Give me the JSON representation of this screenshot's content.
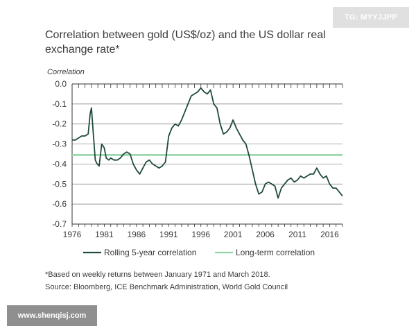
{
  "watermarks": {
    "top": "TG: MYYJJPP",
    "bottom": "www.shenqisj.com"
  },
  "chart_data": {
    "type": "line",
    "title": "Correlation between gold (US$/oz) and the US dollar real exchange rate*",
    "ylabel": "Correlation",
    "xlabel": "",
    "ylim": [
      -0.7,
      0.0
    ],
    "xlim": [
      1976,
      2018
    ],
    "y_ticks": [
      "0.0",
      "-0.1",
      "-0.2",
      "-0.3",
      "-0.4",
      "-0.5",
      "-0.6",
      "-0.7"
    ],
    "x_ticks": [
      "1976",
      "1981",
      "1986",
      "1991",
      "1996",
      "2001",
      "2006",
      "2011",
      "2016"
    ],
    "grid": "horizontal",
    "legend_position": "bottom",
    "series": [
      {
        "name": "Rolling 5-year correlation",
        "color": "#1f4a3a",
        "style": "line",
        "x": [
          1976.0,
          1976.5,
          1977.0,
          1977.5,
          1978.0,
          1978.5,
          1978.8,
          1979.0,
          1979.3,
          1979.6,
          1979.9,
          1980.2,
          1980.6,
          1981.0,
          1981.3,
          1981.7,
          1982.0,
          1982.5,
          1983.0,
          1983.5,
          1984.0,
          1984.5,
          1985.0,
          1985.5,
          1986.0,
          1986.5,
          1987.0,
          1987.5,
          1988.0,
          1988.5,
          1989.0,
          1989.5,
          1990.0,
          1990.5,
          1991.0,
          1991.5,
          1992.0,
          1992.5,
          1993.0,
          1993.5,
          1994.0,
          1994.5,
          1995.0,
          1995.5,
          1996.0,
          1996.5,
          1997.0,
          1997.5,
          1998.0,
          1998.5,
          1999.0,
          1999.5,
          2000.0,
          2000.5,
          2001.0,
          2001.5,
          2002.0,
          2002.5,
          2003.0,
          2003.5,
          2004.0,
          2004.5,
          2005.0,
          2005.5,
          2006.0,
          2006.5,
          2007.0,
          2007.5,
          2008.0,
          2008.5,
          2009.0,
          2009.5,
          2010.0,
          2010.5,
          2011.0,
          2011.5,
          2012.0,
          2012.5,
          2013.0,
          2013.5,
          2014.0,
          2014.5,
          2015.0,
          2015.5,
          2016.0,
          2016.5,
          2017.0,
          2017.5,
          2018.0
        ],
        "values": [
          -0.28,
          -0.28,
          -0.27,
          -0.26,
          -0.26,
          -0.25,
          -0.15,
          -0.12,
          -0.25,
          -0.38,
          -0.4,
          -0.41,
          -0.3,
          -0.32,
          -0.37,
          -0.38,
          -0.37,
          -0.38,
          -0.38,
          -0.37,
          -0.35,
          -0.34,
          -0.35,
          -0.4,
          -0.43,
          -0.45,
          -0.42,
          -0.39,
          -0.38,
          -0.4,
          -0.41,
          -0.42,
          -0.41,
          -0.39,
          -0.26,
          -0.22,
          -0.2,
          -0.21,
          -0.18,
          -0.14,
          -0.1,
          -0.06,
          -0.05,
          -0.04,
          -0.02,
          -0.04,
          -0.05,
          -0.03,
          -0.1,
          -0.12,
          -0.2,
          -0.25,
          -0.24,
          -0.22,
          -0.18,
          -0.22,
          -0.25,
          -0.28,
          -0.3,
          -0.36,
          -0.43,
          -0.5,
          -0.55,
          -0.54,
          -0.5,
          -0.49,
          -0.5,
          -0.51,
          -0.57,
          -0.52,
          -0.5,
          -0.48,
          -0.47,
          -0.49,
          -0.48,
          -0.46,
          -0.47,
          -0.46,
          -0.45,
          -0.45,
          -0.42,
          -0.45,
          -0.47,
          -0.46,
          -0.5,
          -0.52,
          -0.52,
          -0.54,
          -0.56
        ]
      },
      {
        "name": "Long-term correlation",
        "color": "#8fd3a2",
        "style": "line",
        "x": [
          1976,
          2018
        ],
        "values": [
          -0.355,
          -0.355
        ]
      }
    ],
    "footnote": "*Based on weekly returns between January 1971 and March 2018.",
    "source": "Source: Bloomberg, ICE Benchmark Administration, World Gold Council"
  }
}
